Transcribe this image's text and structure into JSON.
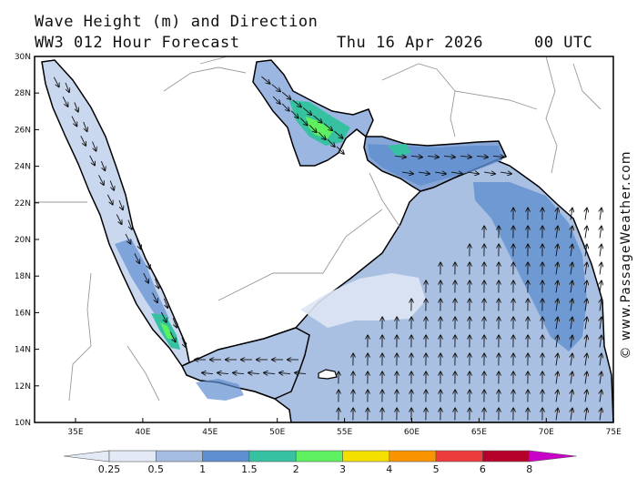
{
  "header": {
    "title": "Wave Height (m) and Direction",
    "subtitle": "WW3 012 Hour Forecast",
    "date": "Thu 16 Apr 2026",
    "time": "00 UTC"
  },
  "credit": "© www.PassageWeather.com",
  "map": {
    "lat_labels": [
      "30N",
      "28N",
      "26N",
      "24N",
      "22N",
      "20N",
      "18N",
      "16N",
      "14N",
      "12N",
      "10N"
    ],
    "lon_labels": [
      "35E",
      "40E",
      "45E",
      "50E",
      "55E",
      "60E",
      "65E",
      "70E",
      "75E"
    ],
    "lat_range": [
      10,
      30
    ],
    "lon_range": [
      32,
      75
    ]
  },
  "legend": {
    "values": [
      "0.25",
      "0.5",
      "1",
      "1.5",
      "2",
      "3",
      "4",
      "5",
      "6",
      "8"
    ],
    "colors": [
      "#e3eaf6",
      "#a4bde0",
      "#5f8fd0",
      "#36c2a0",
      "#5ff060",
      "#f4e000",
      "#f79400",
      "#ec3c3c",
      "#b4002a",
      "#c800c8"
    ]
  }
}
